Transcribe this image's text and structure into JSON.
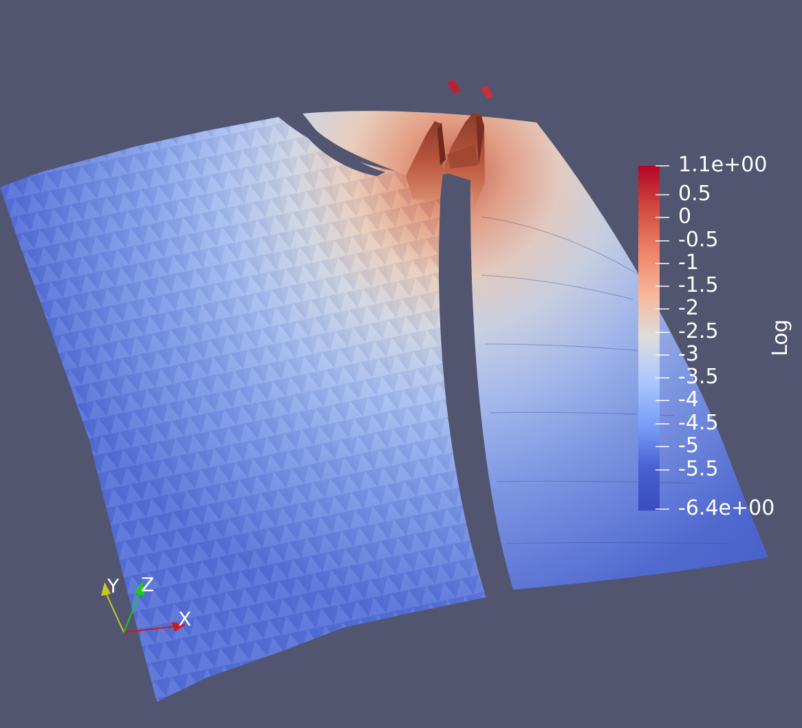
{
  "colorbar": {
    "title": "Log",
    "colors": [
      "#b40426",
      "#d24b40",
      "#ee8468",
      "#f7b89c",
      "#dddcdc",
      "#aac7fd",
      "#7b9ff9",
      "#4961d2",
      "#3b4cc0"
    ],
    "labels": [
      "1.1e+00",
      "0.5",
      "0",
      "-0.5",
      "-1",
      "-1.5",
      "-2",
      "-2.5",
      "-3",
      "-3.5",
      "-4",
      "-4.5",
      "-5",
      "-5.5",
      "-6.4e+00"
    ]
  },
  "orientation_axes": {
    "x_label": "X",
    "y_label": "Y",
    "z_label": "Z",
    "x_color": "#cc1a1a",
    "y_color": "#c8c81e",
    "z_color": "#1ec81e"
  },
  "background_color": "#525570"
}
